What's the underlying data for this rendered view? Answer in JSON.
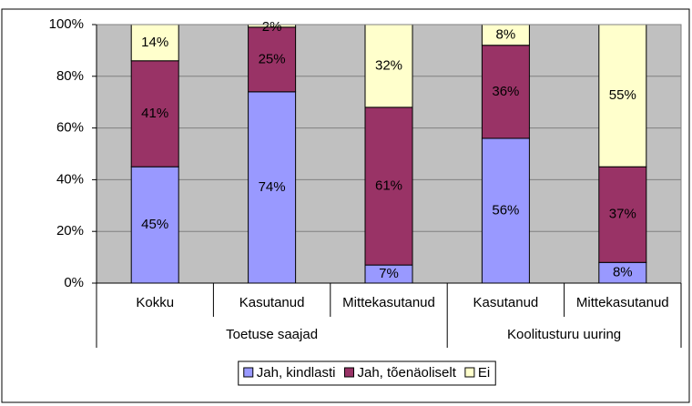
{
  "chart_data": {
    "type": "stacked_bar",
    "groups": [
      {
        "name": "Toetuse saajad",
        "categories": [
          "Kokku",
          "Kasutanud",
          "Mittekasutanud"
        ]
      },
      {
        "name": "Koolitusturu uuring",
        "categories": [
          "Kasutanud",
          "Mittekasutanud"
        ]
      }
    ],
    "series": [
      {
        "name": "Jah, kindlasti",
        "color": "#9999ff",
        "values": [
          45,
          74,
          7,
          56,
          8
        ],
        "value_labels": [
          "45%",
          "74%",
          "7%",
          "56%",
          "8%"
        ]
      },
      {
        "name": "Jah, tõenäoliselt",
        "color": "#993366",
        "values": [
          41,
          25,
          61,
          36,
          37
        ],
        "value_labels": [
          "41%",
          "25%",
          "61%",
          "36%",
          "37%"
        ]
      },
      {
        "name": "Ei",
        "color": "#ffffcc",
        "values": [
          14,
          2,
          32,
          8,
          55
        ],
        "value_labels": [
          "14%",
          "2%",
          "32%",
          "8%",
          "55%"
        ]
      }
    ],
    "ylim": [
      0,
      100
    ],
    "yticks": [
      {
        "value": 0,
        "label": "0%"
      },
      {
        "value": 20,
        "label": "20%"
      },
      {
        "value": 40,
        "label": "40%"
      },
      {
        "value": 60,
        "label": "60%"
      },
      {
        "value": 80,
        "label": "80%"
      },
      {
        "value": 100,
        "label": "100%"
      }
    ],
    "grid": true,
    "legend": "bottom"
  }
}
